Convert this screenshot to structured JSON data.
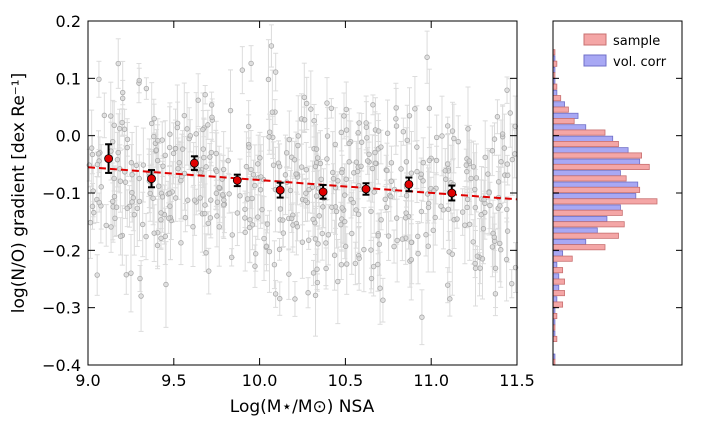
{
  "chart_data": [
    {
      "type": "scatter",
      "title": "",
      "xlabel": "Log(M⋆/M⊙) NSA",
      "ylabel": "log(N/O) gradient [dex Re⁻¹]",
      "xlim": [
        9.0,
        11.5
      ],
      "ylim": [
        -0.4,
        0.2
      ],
      "xticks": [
        "9.0",
        "9.5",
        "10.0",
        "10.5",
        "11.0",
        "11.5"
      ],
      "yticks": [
        "−0.4",
        "−0.3",
        "−0.2",
        "−0.1",
        "0.0",
        "0.1",
        "0.2"
      ],
      "grid": false,
      "series": [
        {
          "name": "galaxies",
          "style": "grey open circles with light grey error bars",
          "n_points": 520
        },
        {
          "name": "binned medians",
          "style": "red filled circles with black error bars",
          "x": [
            9.12,
            9.37,
            9.62,
            9.87,
            10.12,
            10.37,
            10.62,
            10.87,
            11.12
          ],
          "y": [
            -0.04,
            -0.075,
            -0.048,
            -0.078,
            -0.095,
            -0.098,
            -0.093,
            -0.085,
            -0.1
          ],
          "yerr": [
            0.025,
            0.015,
            0.012,
            0.01,
            0.013,
            0.012,
            0.01,
            0.012,
            0.013
          ]
        },
        {
          "name": "linear fit",
          "style": "red dashed line",
          "x": [
            9.0,
            11.5
          ],
          "y": [
            -0.055,
            -0.111
          ]
        }
      ],
      "colors": {
        "scatter": "#a8a8a8",
        "scatter_err": "#dcdcdc",
        "median": "#e00000",
        "fit": "#e00000"
      }
    },
    {
      "type": "bar",
      "orientation": "horizontal",
      "title": "",
      "xlabel": "",
      "ylabel": "",
      "ylim": [
        -0.4,
        0.2
      ],
      "legend_position": "top-right",
      "bin_edges": [
        -0.4,
        -0.38,
        -0.36,
        -0.34,
        -0.32,
        -0.3,
        -0.28,
        -0.26,
        -0.24,
        -0.22,
        -0.2,
        -0.18,
        -0.16,
        -0.14,
        -0.12,
        -0.1,
        -0.08,
        -0.06,
        -0.04,
        -0.02,
        0.0,
        0.02,
        0.04,
        0.06,
        0.08,
        0.1,
        0.12,
        0.14,
        0.16
      ],
      "series": [
        {
          "name": "sample",
          "color": "#f4a6a6",
          "edge": "#c87070",
          "values": [
            1,
            0,
            2,
            1,
            2,
            5,
            6,
            6,
            5,
            10,
            27,
            34,
            37,
            36,
            54,
            45,
            38,
            50,
            46,
            34,
            27,
            11,
            8,
            4,
            2,
            1,
            2,
            1
          ]
        },
        {
          "name": "vol. corr",
          "color": "#a8a8f4",
          "edge": "#6f6fc8",
          "values": [
            1,
            0,
            1,
            1,
            1,
            2,
            3,
            3,
            2,
            5,
            17,
            23,
            28,
            35,
            43,
            44,
            35,
            45,
            39,
            31,
            17,
            13,
            6,
            2,
            1,
            1,
            1,
            0
          ]
        }
      ]
    }
  ]
}
